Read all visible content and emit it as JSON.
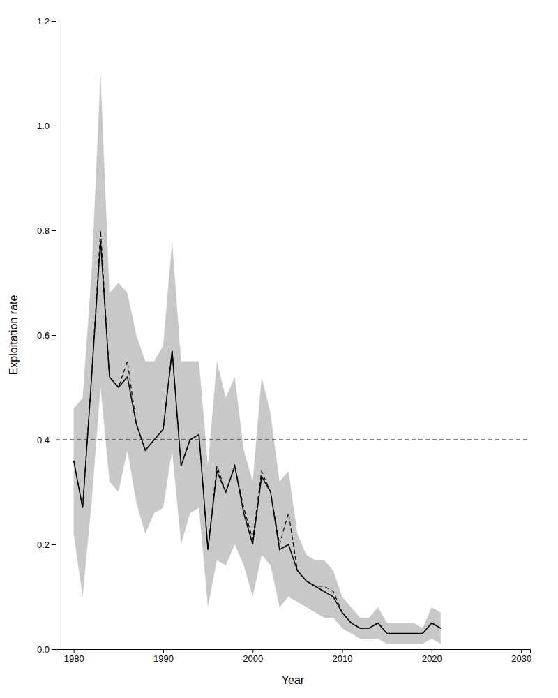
{
  "chart_data": {
    "type": "line",
    "xlabel": "Year",
    "ylabel": "Exploitation rate",
    "x": [
      1980,
      1981,
      1982,
      1983,
      1984,
      1985,
      1986,
      1987,
      1988,
      1989,
      1990,
      1991,
      1992,
      1993,
      1994,
      1995,
      1996,
      1997,
      1998,
      1999,
      2000,
      2001,
      2002,
      2003,
      2004,
      2005,
      2006,
      2007,
      2008,
      2009,
      2010,
      2011,
      2012,
      2013,
      2014,
      2015,
      2016,
      2017,
      2018,
      2019,
      2020,
      2021
    ],
    "series": [
      {
        "color": "#000000",
        "line_style": "solid",
        "values": [
          0.36,
          0.27,
          0.52,
          0.78,
          0.52,
          0.5,
          0.52,
          0.43,
          0.38,
          0.4,
          0.42,
          0.57,
          0.35,
          0.4,
          0.41,
          0.19,
          0.34,
          0.3,
          0.35,
          0.26,
          0.2,
          0.33,
          0.3,
          0.19,
          0.2,
          0.15,
          0.13,
          0.12,
          0.11,
          0.1,
          0.07,
          0.05,
          0.04,
          0.04,
          0.05,
          0.03,
          0.03,
          0.03,
          0.03,
          0.03,
          0.05,
          0.04
        ]
      },
      {
        "color": "#000000",
        "line_style": "dashed",
        "values": [
          0.36,
          0.27,
          0.52,
          0.8,
          0.52,
          0.5,
          0.55,
          0.43,
          0.38,
          0.4,
          0.42,
          0.57,
          0.35,
          0.4,
          0.41,
          0.19,
          0.35,
          0.3,
          0.35,
          0.27,
          0.21,
          0.34,
          0.3,
          0.2,
          0.26,
          0.15,
          0.13,
          0.12,
          0.12,
          0.11,
          0.07,
          0.05,
          0.04,
          0.04,
          0.05,
          0.03,
          0.03,
          0.03,
          0.03,
          0.03,
          0.05,
          0.04
        ]
      }
    ],
    "band": {
      "color": "#c8c8c8",
      "upper": [
        0.46,
        0.48,
        0.72,
        1.1,
        0.68,
        0.7,
        0.68,
        0.6,
        0.55,
        0.55,
        0.58,
        0.78,
        0.55,
        0.55,
        0.55,
        0.35,
        0.55,
        0.48,
        0.52,
        0.38,
        0.32,
        0.52,
        0.45,
        0.32,
        0.34,
        0.22,
        0.18,
        0.17,
        0.17,
        0.15,
        0.1,
        0.08,
        0.06,
        0.06,
        0.08,
        0.05,
        0.05,
        0.05,
        0.05,
        0.04,
        0.08,
        0.07
      ],
      "lower": [
        0.22,
        0.1,
        0.28,
        0.5,
        0.32,
        0.3,
        0.38,
        0.28,
        0.22,
        0.26,
        0.27,
        0.38,
        0.2,
        0.26,
        0.27,
        0.08,
        0.17,
        0.16,
        0.2,
        0.16,
        0.1,
        0.18,
        0.16,
        0.08,
        0.1,
        0.09,
        0.08,
        0.07,
        0.06,
        0.06,
        0.04,
        0.03,
        0.02,
        0.02,
        0.02,
        0.01,
        0.01,
        0.01,
        0.01,
        0.01,
        0.02,
        0.01
      ]
    },
    "reference_line": {
      "value": 0.4,
      "color": "#000000",
      "line_style": "dashed"
    },
    "xlim": [
      1978,
      2031
    ],
    "ylim": [
      0.0,
      1.2
    ],
    "xticks": [
      1980,
      1990,
      2000,
      2010,
      2020,
      2030
    ],
    "yticks": [
      {
        "value": 0.0,
        "label": "0.0"
      },
      0.2,
      0.4,
      0.6,
      0.8,
      {
        "value": 1.0,
        "label": "1.0"
      },
      1.2
    ],
    "grid": false
  }
}
